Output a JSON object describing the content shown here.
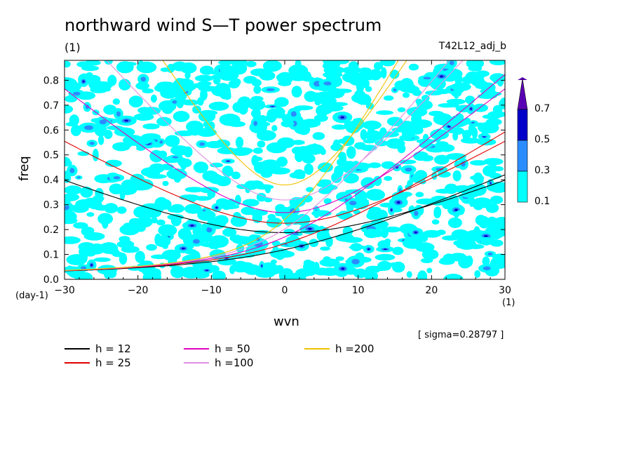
{
  "chart_data": {
    "type": "heatmap",
    "title": "northward wind S—T power spectrum",
    "subtitle": "(1)",
    "experiment": "T42L12_adj_b",
    "xlabel": "wvn",
    "ylabel": "freq",
    "x_unit": "(1)",
    "y_unit": "(day-1)",
    "xlim": [
      -30,
      30
    ],
    "ylim": [
      0.0,
      0.88
    ],
    "xticks": [
      "−30",
      "−20",
      "−10",
      "0",
      "10",
      "20",
      "30"
    ],
    "xtick_values": [
      -30,
      -20,
      -10,
      0,
      10,
      20,
      30
    ],
    "yticks": [
      "0.0",
      "0.1",
      "0.2",
      "0.3",
      "0.4",
      "0.5",
      "0.6",
      "0.7",
      "0.8"
    ],
    "ytick_values": [
      0.0,
      0.1,
      0.2,
      0.3,
      0.4,
      0.5,
      0.6,
      0.7,
      0.8
    ],
    "sigma_text": "[ sigma=0.28797 ]",
    "contour_levels": [
      0.1,
      0.3,
      0.5,
      0.7
    ],
    "contour_level_labels": [
      "0.1",
      "0.3",
      "0.5",
      "0.7"
    ],
    "fill_colors": [
      "#00ffff",
      "#2b8cff",
      "#0000c8",
      "#5a00b4"
    ],
    "dispersion_curves": [
      {
        "name": "h = 12",
        "color": "#000000"
      },
      {
        "name": "h = 25",
        "color": "#e00000"
      },
      {
        "name": "h = 50",
        "color": "#e000c0"
      },
      {
        "name": "h =100",
        "color": "#e090e0"
      },
      {
        "name": "h =200",
        "color": "#f0c000"
      }
    ]
  }
}
